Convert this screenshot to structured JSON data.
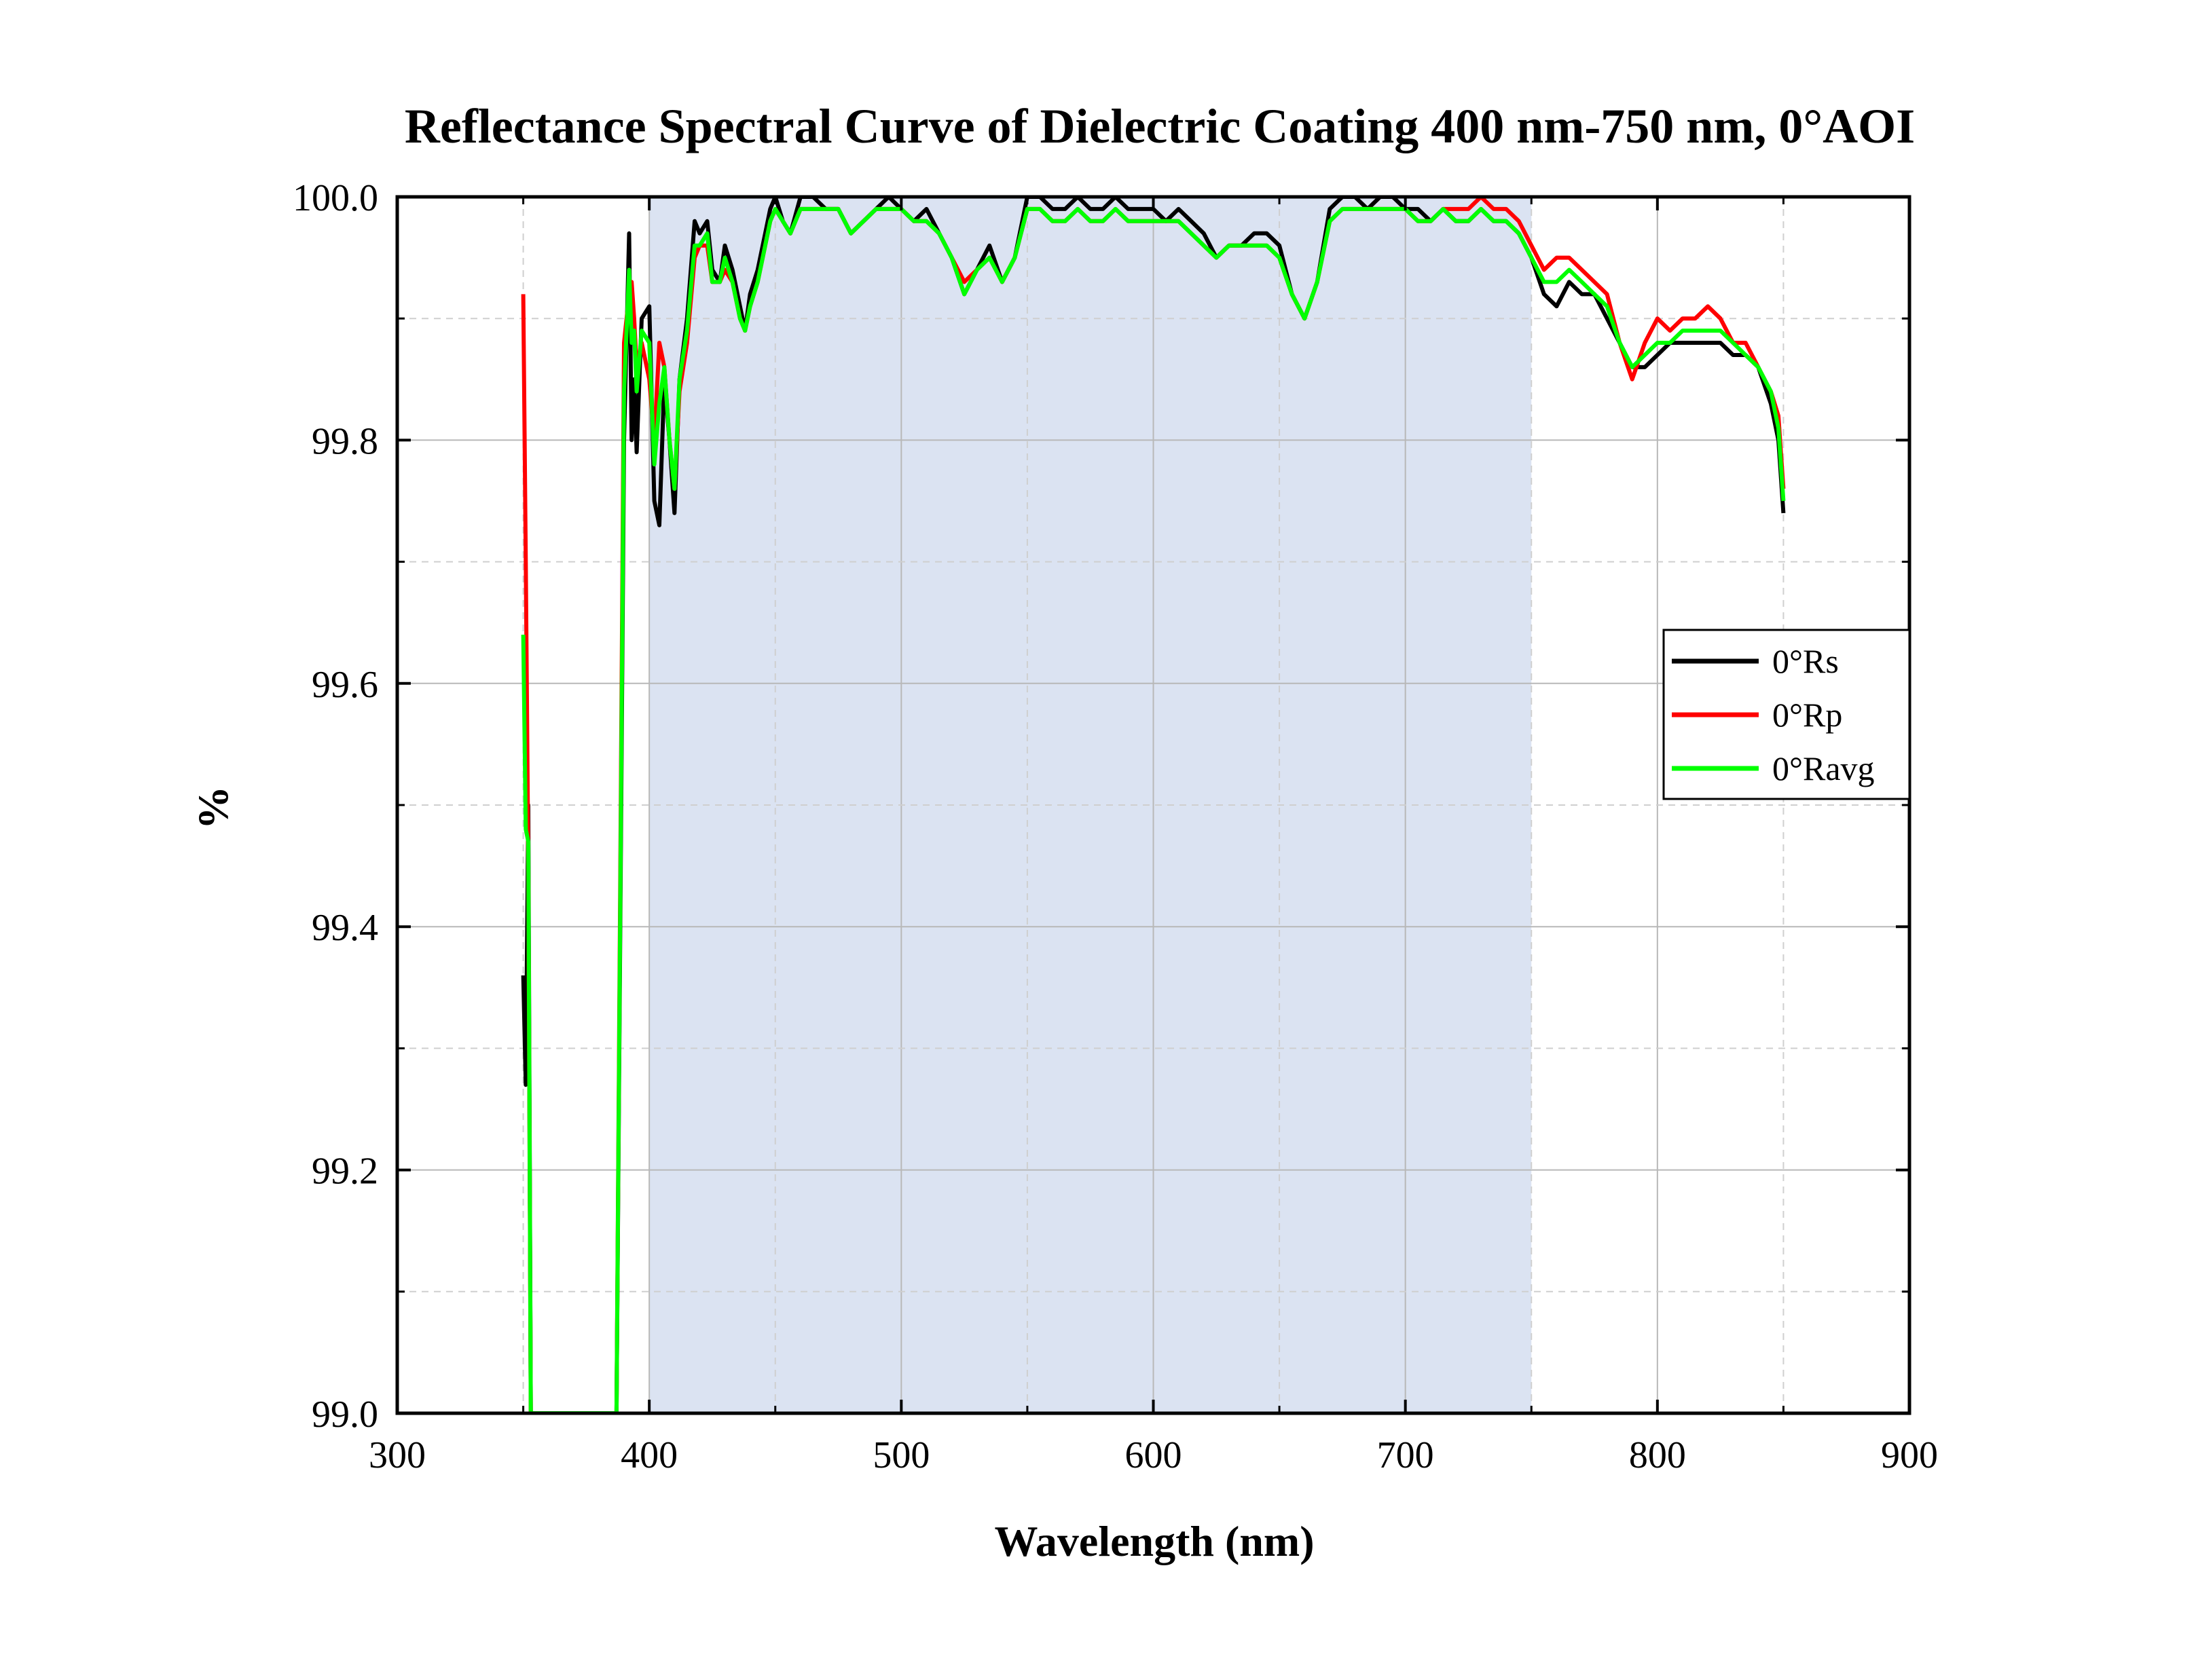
{
  "chart_data": {
    "type": "line",
    "title": "Reflectance Spectral Curve of Dielectric Coating 400 nm-750 nm,  0°AOI",
    "xlabel": "Wavelength (nm)",
    "ylabel": "%",
    "xlim": [
      300,
      900
    ],
    "ylim": [
      99.0,
      100.0
    ],
    "xticks": [
      "300",
      "400",
      "500",
      "600",
      "700",
      "800",
      "900"
    ],
    "yticks": [
      "99.0",
      "99.2",
      "99.4",
      "99.6",
      "99.8",
      "100.0"
    ],
    "grid": true,
    "legend_position": "right",
    "highlight_band": {
      "x": [
        400,
        750
      ],
      "color": "#dbe3f2"
    },
    "series": [
      {
        "name": "0°Rs",
        "color": "#000000",
        "x": [
          350,
          351,
          352,
          353,
          387,
          390,
          392,
          393,
          394,
          395,
          397,
          400,
          402,
          404,
          406,
          408,
          410,
          412,
          415,
          418,
          420,
          423,
          425,
          428,
          430,
          433,
          436,
          438,
          440,
          443,
          446,
          448,
          450,
          453,
          456,
          460,
          465,
          470,
          475,
          480,
          485,
          490,
          495,
          500,
          505,
          510,
          515,
          520,
          525,
          530,
          535,
          540,
          545,
          550,
          555,
          560,
          565,
          570,
          575,
          580,
          585,
          590,
          595,
          600,
          605,
          610,
          615,
          620,
          625,
          630,
          635,
          640,
          645,
          650,
          655,
          660,
          665,
          670,
          675,
          680,
          685,
          690,
          695,
          700,
          705,
          710,
          715,
          720,
          725,
          730,
          735,
          740,
          745,
          750,
          755,
          760,
          765,
          770,
          775,
          780,
          785,
          790,
          795,
          800,
          805,
          810,
          815,
          820,
          825,
          830,
          835,
          840,
          845,
          848,
          850
        ],
        "y": [
          99.36,
          99.27,
          99.5,
          99.0,
          99.0,
          99.8,
          99.97,
          99.8,
          99.85,
          99.79,
          99.9,
          99.91,
          99.75,
          99.73,
          99.85,
          99.8,
          99.74,
          99.85,
          99.9,
          99.98,
          99.97,
          99.98,
          99.94,
          99.93,
          99.96,
          99.94,
          99.91,
          99.89,
          99.92,
          99.94,
          99.97,
          99.99,
          100.0,
          99.98,
          99.97,
          100.0,
          100.0,
          99.99,
          99.99,
          99.97,
          99.98,
          99.99,
          100.0,
          99.99,
          99.98,
          99.99,
          99.97,
          99.95,
          99.92,
          99.94,
          99.96,
          99.93,
          99.95,
          100.0,
          100.0,
          99.99,
          99.99,
          100.0,
          99.99,
          99.99,
          100.0,
          99.99,
          99.99,
          99.99,
          99.98,
          99.99,
          99.98,
          99.97,
          99.95,
          99.96,
          99.96,
          99.97,
          99.97,
          99.96,
          99.92,
          99.9,
          99.93,
          99.99,
          100.0,
          100.0,
          99.99,
          100.0,
          100.0,
          99.99,
          99.99,
          99.98,
          99.99,
          99.98,
          99.98,
          99.99,
          99.98,
          99.98,
          99.97,
          99.95,
          99.92,
          99.91,
          99.93,
          99.92,
          99.92,
          99.9,
          99.88,
          99.86,
          99.86,
          99.87,
          99.88,
          99.88,
          99.88,
          99.88,
          99.88,
          99.87,
          99.87,
          99.86,
          99.83,
          99.8,
          99.74
        ]
      },
      {
        "name": "0°Rp",
        "color": "#ff0000",
        "x": [
          350,
          351,
          352,
          353,
          387,
          390,
          392,
          393,
          394,
          395,
          397,
          400,
          402,
          404,
          406,
          408,
          410,
          412,
          415,
          418,
          420,
          423,
          425,
          428,
          430,
          433,
          436,
          438,
          440,
          443,
          446,
          448,
          450,
          453,
          456,
          460,
          465,
          470,
          475,
          480,
          485,
          490,
          495,
          500,
          505,
          510,
          515,
          520,
          525,
          530,
          535,
          540,
          545,
          550,
          555,
          560,
          565,
          570,
          575,
          580,
          585,
          590,
          595,
          600,
          605,
          610,
          615,
          620,
          625,
          630,
          635,
          640,
          645,
          650,
          655,
          660,
          665,
          670,
          675,
          680,
          685,
          690,
          695,
          700,
          705,
          710,
          715,
          720,
          725,
          730,
          735,
          740,
          745,
          750,
          755,
          760,
          765,
          770,
          775,
          780,
          785,
          790,
          795,
          800,
          805,
          810,
          815,
          820,
          825,
          830,
          835,
          840,
          845,
          848,
          850
        ],
        "y": [
          99.92,
          99.7,
          99.45,
          99.0,
          99.0,
          99.88,
          99.92,
          99.93,
          99.9,
          99.86,
          99.88,
          99.85,
          99.8,
          99.88,
          99.86,
          99.8,
          99.76,
          99.84,
          99.88,
          99.95,
          99.96,
          99.96,
          99.93,
          99.93,
          99.94,
          99.93,
          99.9,
          99.89,
          99.91,
          99.93,
          99.96,
          99.98,
          99.99,
          99.98,
          99.97,
          99.99,
          99.99,
          99.99,
          99.99,
          99.97,
          99.98,
          99.99,
          99.99,
          99.99,
          99.98,
          99.98,
          99.97,
          99.95,
          99.93,
          99.94,
          99.95,
          99.93,
          99.95,
          99.99,
          99.99,
          99.98,
          99.98,
          99.99,
          99.98,
          99.98,
          99.99,
          99.98,
          99.98,
          99.98,
          99.98,
          99.98,
          99.97,
          99.96,
          99.95,
          99.96,
          99.96,
          99.96,
          99.96,
          99.95,
          99.92,
          99.9,
          99.93,
          99.98,
          99.99,
          99.99,
          99.99,
          99.99,
          99.99,
          99.99,
          99.98,
          99.98,
          99.99,
          99.99,
          99.99,
          100.0,
          99.99,
          99.99,
          99.98,
          99.96,
          99.94,
          99.95,
          99.95,
          99.94,
          99.93,
          99.92,
          99.88,
          99.85,
          99.88,
          99.9,
          99.89,
          99.9,
          99.9,
          99.91,
          99.9,
          99.88,
          99.88,
          99.86,
          99.84,
          99.82,
          99.76
        ]
      },
      {
        "name": "0°Ravg",
        "color": "#00ff00",
        "x": [
          350,
          351,
          352,
          353,
          387,
          390,
          392,
          393,
          394,
          395,
          397,
          400,
          402,
          404,
          406,
          408,
          410,
          412,
          415,
          418,
          420,
          423,
          425,
          428,
          430,
          433,
          436,
          438,
          440,
          443,
          446,
          448,
          450,
          453,
          456,
          460,
          465,
          470,
          475,
          480,
          485,
          490,
          495,
          500,
          505,
          510,
          515,
          520,
          525,
          530,
          535,
          540,
          545,
          550,
          555,
          560,
          565,
          570,
          575,
          580,
          585,
          590,
          595,
          600,
          605,
          610,
          615,
          620,
          625,
          630,
          635,
          640,
          645,
          650,
          655,
          660,
          665,
          670,
          675,
          680,
          685,
          690,
          695,
          700,
          705,
          710,
          715,
          720,
          725,
          730,
          735,
          740,
          745,
          750,
          755,
          760,
          765,
          770,
          775,
          780,
          785,
          790,
          795,
          800,
          805,
          810,
          815,
          820,
          825,
          830,
          835,
          840,
          845,
          848,
          850
        ],
        "y": [
          99.64,
          99.48,
          99.47,
          99.0,
          99.0,
          99.84,
          99.94,
          99.88,
          99.89,
          99.84,
          99.89,
          99.88,
          99.78,
          99.83,
          99.86,
          99.8,
          99.76,
          99.85,
          99.89,
          99.96,
          99.96,
          99.97,
          99.93,
          99.93,
          99.95,
          99.93,
          99.9,
          99.89,
          99.91,
          99.93,
          99.96,
          99.98,
          99.99,
          99.98,
          99.97,
          99.99,
          99.99,
          99.99,
          99.99,
          99.97,
          99.98,
          99.99,
          99.99,
          99.99,
          99.98,
          99.98,
          99.97,
          99.95,
          99.92,
          99.94,
          99.95,
          99.93,
          99.95,
          99.99,
          99.99,
          99.98,
          99.98,
          99.99,
          99.98,
          99.98,
          99.99,
          99.98,
          99.98,
          99.98,
          99.98,
          99.98,
          99.97,
          99.96,
          99.95,
          99.96,
          99.96,
          99.96,
          99.96,
          99.95,
          99.92,
          99.9,
          99.93,
          99.98,
          99.99,
          99.99,
          99.99,
          99.99,
          99.99,
          99.99,
          99.98,
          99.98,
          99.99,
          99.98,
          99.98,
          99.99,
          99.98,
          99.98,
          99.97,
          99.95,
          99.93,
          99.93,
          99.94,
          99.93,
          99.92,
          99.91,
          99.88,
          99.86,
          99.87,
          99.88,
          99.88,
          99.89,
          99.89,
          99.89,
          99.89,
          99.88,
          99.87,
          99.86,
          99.84,
          99.81,
          99.75
        ]
      }
    ]
  }
}
